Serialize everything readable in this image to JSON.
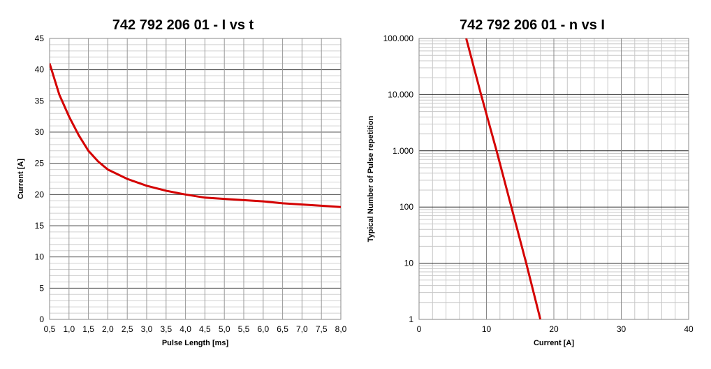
{
  "chart_data": [
    {
      "type": "line",
      "title": "742 792 206 01  -  I vs t",
      "x_label": "Pulse Length [ms]",
      "y_label": "Current [A]",
      "x": [
        0.5,
        0.75,
        1.0,
        1.25,
        1.5,
        1.75,
        2.0,
        2.5,
        3.0,
        3.5,
        4.0,
        4.5,
        5.0,
        5.5,
        6.0,
        6.5,
        7.0,
        7.5,
        8.0
      ],
      "values": [
        41,
        36,
        32.5,
        29.5,
        27,
        25.3,
        24,
        22.5,
        21.4,
        20.6,
        20,
        19.5,
        19.3,
        19.1,
        18.9,
        18.6,
        18.4,
        18.2,
        18
      ],
      "color": "#d40000",
      "xlim": [
        0.5,
        8.0
      ],
      "ylim": [
        0,
        45
      ],
      "xticks": [
        {
          "value": 0.5,
          "label": "0,5"
        },
        {
          "value": 1.0,
          "label": "1,0"
        },
        {
          "value": 1.5,
          "label": "1,5"
        },
        {
          "value": 2.0,
          "label": "2,0"
        },
        {
          "value": 2.5,
          "label": "2,5"
        },
        {
          "value": 3.0,
          "label": "3,0"
        },
        {
          "value": 3.5,
          "label": "3,5"
        },
        {
          "value": 4.0,
          "label": "4,0"
        },
        {
          "value": 4.5,
          "label": "4,5"
        },
        {
          "value": 5.0,
          "label": "5,0"
        },
        {
          "value": 5.5,
          "label": "5,5"
        },
        {
          "value": 6.0,
          "label": "6,0"
        },
        {
          "value": 6.5,
          "label": "6,5"
        },
        {
          "value": 7.0,
          "label": "7,0"
        },
        {
          "value": 7.5,
          "label": "7,5"
        },
        {
          "value": 8.0,
          "label": "8,0"
        }
      ],
      "yticks": [
        0,
        5,
        10,
        15,
        20,
        25,
        30,
        35,
        40,
        45
      ],
      "grid": true,
      "yscale": "linear"
    },
    {
      "type": "line",
      "title": "742 792 206 01  -  n vs I",
      "x_label": "Current [A]",
      "y_label": "Typical Number of Pulse repetition",
      "x": [
        7,
        9.2,
        11.5,
        13.7,
        15.9,
        18
      ],
      "values": [
        100000,
        10000,
        1000,
        100,
        10,
        1
      ],
      "color": "#d40000",
      "xlim": [
        0,
        40
      ],
      "ylim": [
        1,
        100000
      ],
      "xticks": [
        0,
        10,
        20,
        30,
        40
      ],
      "yticks": [
        1,
        10,
        100,
        {
          "value": 1000,
          "label": "1.000"
        },
        {
          "value": 10000,
          "label": "10.000"
        },
        {
          "value": 100000,
          "label": "100.000"
        }
      ],
      "grid": true,
      "yscale": "log"
    }
  ]
}
